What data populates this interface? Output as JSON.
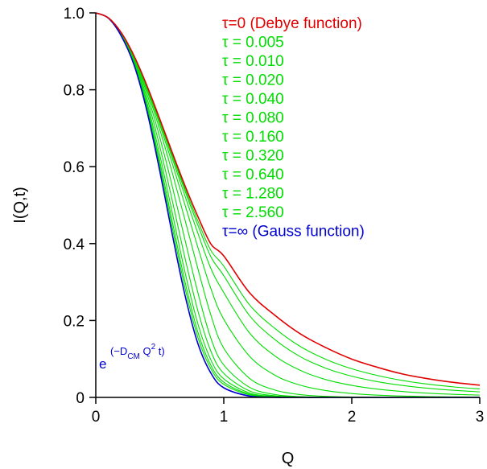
{
  "chart_data": {
    "type": "line",
    "xlabel": "Q",
    "ylabel": "I(Q,t)",
    "xlim": [
      0,
      3
    ],
    "ylim": [
      0,
      1.0
    ],
    "x_ticks": [
      0,
      1,
      2,
      3
    ],
    "x_tick_labels": [
      "0",
      "1",
      "2",
      "3"
    ],
    "y_ticks": [
      0,
      0.2,
      0.4,
      0.6,
      0.8,
      1.0
    ],
    "y_tick_labels": [
      "0",
      "0.2",
      "0.4",
      "0.6",
      "0.8",
      "1.0"
    ],
    "grid": false,
    "legend_position": "top-right",
    "colors": {
      "debye": "#e00000",
      "intermediate": "#00dd00",
      "gauss": "#0000d0"
    },
    "x": [
      0,
      0.1,
      0.2,
      0.3,
      0.4,
      0.5,
      0.6,
      0.7,
      0.8,
      0.9,
      1.0,
      1.2,
      1.4,
      1.6,
      1.8,
      2.0,
      2.2,
      2.4,
      2.6,
      2.8,
      3.0
    ],
    "series": [
      {
        "name": "τ=0 (Debye function)",
        "color": "#e00000",
        "values": [
          1.0,
          0.9867,
          0.948,
          0.8874,
          0.8104,
          0.7238,
          0.6345,
          0.5481,
          0.4687,
          0.3986,
          0.3679,
          0.2727,
          0.2135,
          0.1648,
          0.129,
          0.0996,
          0.0783,
          0.0606,
          0.0483,
          0.0388,
          0.0318
        ]
      },
      {
        "name": "τ = 0.005",
        "color": "#00dd00",
        "values": [
          1.0,
          0.9867,
          0.9479,
          0.8872,
          0.8096,
          0.722,
          0.6308,
          0.541,
          0.457,
          0.3818,
          0.3415,
          0.2412,
          0.1792,
          0.132,
          0.0987,
          0.0745,
          0.057,
          0.0438,
          0.0343,
          0.0272,
          0.0219
        ]
      },
      {
        "name": "τ = 0.010",
        "color": "#00dd00",
        "values": [
          1.0,
          0.9867,
          0.9478,
          0.8869,
          0.8087,
          0.72,
          0.627,
          0.5341,
          0.4458,
          0.3654,
          0.3166,
          0.2133,
          0.1502,
          0.1055,
          0.0756,
          0.0552,
          0.041,
          0.0309,
          0.0236,
          0.0184,
          0.0145
        ]
      },
      {
        "name": "τ = 0.020",
        "color": "#00dd00",
        "values": [
          1.0,
          0.9867,
          0.9476,
          0.8864,
          0.8072,
          0.7162,
          0.6196,
          0.5209,
          0.4247,
          0.3347,
          0.2726,
          0.1681,
          0.1077,
          0.07,
          0.0462,
          0.0313,
          0.0216,
          0.0152,
          0.0109,
          0.008,
          0.006
        ]
      },
      {
        "name": "τ = 0.040",
        "color": "#00dd00",
        "values": [
          1.0,
          0.9866,
          0.9472,
          0.8855,
          0.8041,
          0.7091,
          0.6057,
          0.4972,
          0.3875,
          0.2821,
          0.2031,
          0.1076,
          0.0576,
          0.0316,
          0.0176,
          0.0101,
          0.0059,
          0.0035,
          0.0021,
          0.0013,
          0.0008
        ]
      },
      {
        "name": "τ = 0.080",
        "color": "#00dd00",
        "values": [
          1.0,
          0.9866,
          0.9465,
          0.8837,
          0.7985,
          0.6962,
          0.5813,
          0.4578,
          0.332,
          0.2134,
          0.1279,
          0.0499,
          0.0191,
          0.0072,
          0.0027,
          0.001,
          0.0004,
          0.0001,
          0.0,
          0.0,
          0.0
        ]
      },
      {
        "name": "τ = 0.160",
        "color": "#00dd00",
        "values": [
          1.0,
          0.9865,
          0.9454,
          0.8808,
          0.7895,
          0.6761,
          0.5458,
          0.4054,
          0.2693,
          0.153,
          0.0843,
          0.0265,
          0.0075,
          0.002,
          0.0005,
          0.0001,
          0.0,
          0.0,
          0.0,
          0.0,
          0.0
        ]
      },
      {
        "name": "τ = 0.320",
        "color": "#00dd00",
        "values": [
          1.0,
          0.9863,
          0.9441,
          0.8767,
          0.7781,
          0.6524,
          0.5083,
          0.3581,
          0.2225,
          0.1195,
          0.0624,
          0.017,
          0.0042,
          0.001,
          0.0002,
          0.0,
          0.0,
          0.0,
          0.0,
          0.0,
          0.0
        ]
      },
      {
        "name": "τ = 0.640",
        "color": "#00dd00",
        "values": [
          1.0,
          0.9862,
          0.9426,
          0.8727,
          0.767,
          0.6304,
          0.4765,
          0.3212,
          0.1888,
          0.0969,
          0.0482,
          0.0116,
          0.0025,
          0.0005,
          0.0001,
          0.0,
          0.0,
          0.0,
          0.0,
          0.0,
          0.0
        ]
      },
      {
        "name": "τ = 1.280",
        "color": "#00dd00",
        "values": [
          1.0,
          0.9861,
          0.9413,
          0.8692,
          0.758,
          0.6136,
          0.4534,
          0.2963,
          0.1673,
          0.083,
          0.0397,
          0.0085,
          0.0016,
          0.0003,
          0.0,
          0.0,
          0.0,
          0.0,
          0.0,
          0.0,
          0.0
        ]
      },
      {
        "name": "τ = 2.560",
        "color": "#00dd00",
        "values": [
          1.0,
          0.986,
          0.9404,
          0.8666,
          0.7516,
          0.6021,
          0.438,
          0.2802,
          0.1536,
          0.0741,
          0.034,
          0.0066,
          0.0011,
          0.0002,
          0.0,
          0.0,
          0.0,
          0.0,
          0.0,
          0.0,
          0.0
        ]
      },
      {
        "name": "τ=∞ (Gauss function)",
        "color": "#0000d0",
        "values": [
          1.0,
          0.9859,
          0.9394,
          0.8636,
          0.7442,
          0.5886,
          0.4198,
          0.2614,
          0.1377,
          0.0627,
          0.0251,
          0.0036,
          0.0004,
          0.0,
          0.0,
          0.0,
          0.0,
          0.0,
          0.0,
          0.0,
          0.0
        ]
      }
    ],
    "annotation": {
      "base": "e",
      "exponent_parts": [
        "(−D",
        "CM",
        " Q",
        "2",
        " t)"
      ],
      "color": "#0000d0",
      "at_data": [
        0.05,
        0.08
      ]
    }
  }
}
